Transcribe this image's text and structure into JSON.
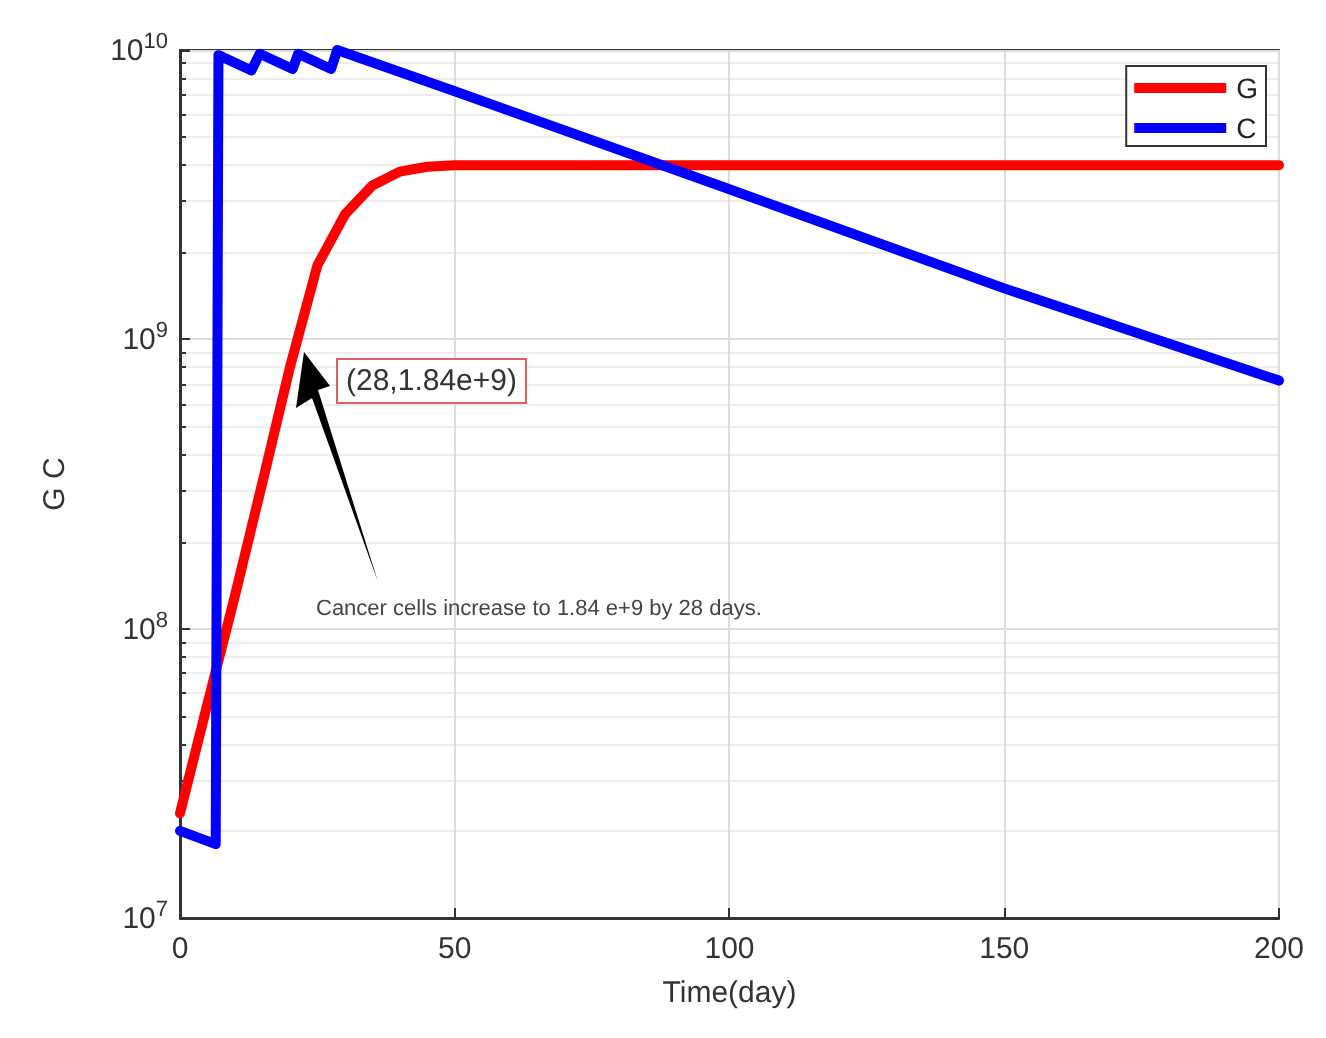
{
  "chart_data": {
    "type": "line",
    "xlabel": "Time(day)",
    "ylabel": "G C",
    "xlim": [
      0,
      200
    ],
    "xticks": [
      0,
      50,
      100,
      150,
      200
    ],
    "ylim": [
      10000000,
      10000000000
    ],
    "yticks": [
      {
        "value": 10000000,
        "label": "10$^{7}$"
      },
      {
        "value": 100000000,
        "label": "10$^{8}$"
      },
      {
        "value": 1000000000,
        "label": "10$^{9}$"
      },
      {
        "value": 10000000000,
        "label": "10$^{10}$"
      }
    ],
    "log": "y",
    "grid": true,
    "legend": "top right",
    "marker": "none",
    "line_style": "solid",
    "series": [
      {
        "name": "G",
        "color": "#ff0000",
        "x": [
          0,
          5,
          10,
          15,
          20,
          25,
          30,
          35,
          40,
          45,
          50,
          60,
          80,
          100,
          150,
          200
        ],
        "values": [
          23000000,
          55000000,
          130000000,
          320000000,
          800000000,
          1800000000,
          2700000000,
          3400000000,
          3800000000,
          3950000000,
          4000000000,
          4000000000,
          4000000000,
          4000000000,
          4000000000,
          4000000000
        ]
      },
      {
        "name": "C",
        "color": "#0000ff",
        "x": [
          0,
          6.5,
          7,
          13,
          14.5,
          20.5,
          21.5,
          27.5,
          28.6,
          50,
          100,
          150,
          200
        ],
        "values": [
          20000000,
          18000000,
          9600000000,
          8500000000,
          9700000000,
          8600000000,
          9700000000,
          8600000000,
          10000000000,
          7200000000,
          3300000000,
          1500000000,
          720000000
        ]
      }
    ],
    "annotations": [
      "(28,1.84e+9)",
      "Cancer cells increase to 1.84 e+9 by 28 days."
    ]
  }
}
